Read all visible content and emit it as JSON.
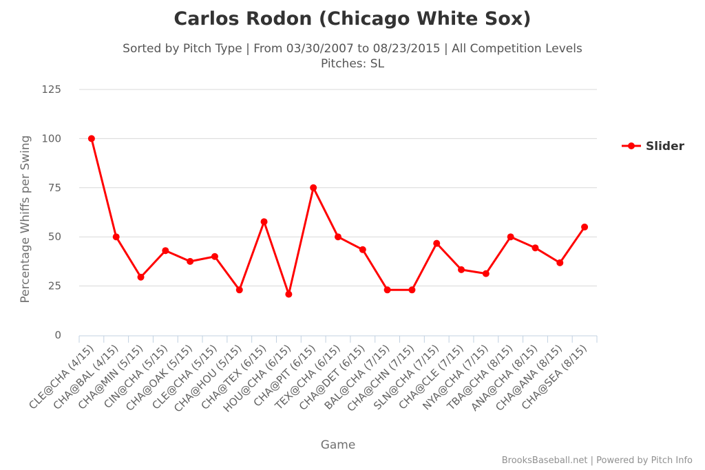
{
  "chart_data": {
    "type": "line",
    "title": "Carlos Rodon (Chicago White Sox)",
    "subtitle": "Sorted by Pitch Type | From 03/30/2007 to 08/23/2015 | All Competition Levels",
    "subtitle2": "Pitches: SL",
    "xlabel": "Game",
    "ylabel": "Percentage Whiffs per Swing",
    "ylim": [
      0,
      125
    ],
    "yticks": [
      0,
      25,
      50,
      75,
      100,
      125
    ],
    "grid": true,
    "legend_position": "right",
    "categories": [
      "CLE@CHA (4/15)",
      "CHA@BAL (4/15)",
      "CHA@MIN (5/15)",
      "CIN@CHA (5/15)",
      "CHA@OAK (5/15)",
      "CLE@CHA (5/15)",
      "CHA@HOU (5/15)",
      "CHA@TEX (6/15)",
      "HOU@CHA (6/15)",
      "CHA@PIT (6/15)",
      "TEX@CHA (6/15)",
      "CHA@DET (6/15)",
      "BAL@CHA (7/15)",
      "CHA@CHN (7/15)",
      "SLN@CHA (7/15)",
      "CHA@CLE (7/15)",
      "NYA@CHA (7/15)",
      "TBA@CHA (8/15)",
      "ANA@CHA (8/15)",
      "CHA@ANA (8/15)",
      "CHA@SEA (8/15)"
    ],
    "series": [
      {
        "name": "Slider",
        "color": "#ff0000",
        "values": [
          100,
          50,
          29.5,
          43,
          37.5,
          40,
          23,
          57.7,
          20.8,
          75,
          50,
          43.5,
          23,
          23,
          46.7,
          33.3,
          31.3,
          50,
          44.4,
          36.8,
          55
        ]
      }
    ]
  },
  "credits": "BrooksBaseball.net | Powered by Pitch Info"
}
